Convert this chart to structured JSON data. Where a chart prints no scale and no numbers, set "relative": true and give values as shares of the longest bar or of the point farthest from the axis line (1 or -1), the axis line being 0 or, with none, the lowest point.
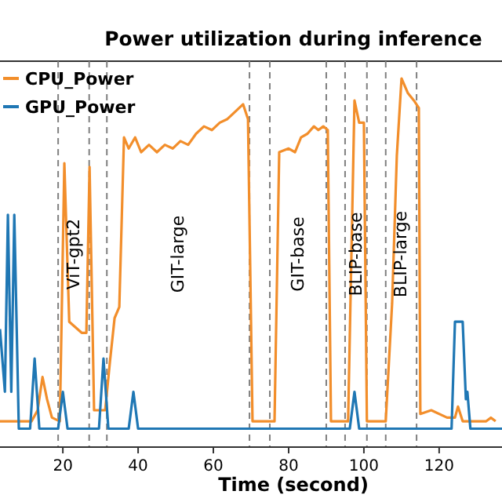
{
  "chart_data": {
    "type": "line",
    "title": "Power utilization during inference",
    "xlabel": "Time (second)",
    "relative": true,
    "xlim": [
      3.3,
      136.7
    ],
    "xticks": [
      20,
      40,
      60,
      80,
      100,
      120
    ],
    "legend": "top left",
    "grid": false,
    "series": [
      {
        "name": "CPU_Power",
        "color": "#f28e2b",
        "x": [
          3.3,
          11.7,
          13.3,
          14.6,
          15.8,
          17.1,
          19.2,
          20.4,
          21.7,
          25,
          26.25,
          27.1,
          28.3,
          31.25,
          32.5,
          33.75,
          35,
          36.25,
          37.5,
          39.2,
          40.8,
          42.9,
          45,
          47.1,
          49.2,
          51.25,
          53.3,
          55.4,
          57.5,
          59.6,
          61.7,
          63.75,
          65.8,
          67.9,
          69.2,
          70.4,
          76.25,
          77.5,
          80,
          81.7,
          83.3,
          85,
          86.7,
          87.9,
          89.2,
          90.4,
          91.25,
          95.8,
          97.5,
          98.75,
          100,
          100.8,
          105.8,
          107.5,
          108.75,
          110,
          111.7,
          113.3,
          114.6,
          115,
          117.9,
          122.1,
          124.2,
          125,
          126.25,
          132.5,
          133.75,
          135
        ],
        "values": [
          0.07,
          0.07,
          0.1,
          0.19,
          0.13,
          0.08,
          0.07,
          0.77,
          0.34,
          0.31,
          0.31,
          0.76,
          0.1,
          0.1,
          0.23,
          0.35,
          0.38,
          0.84,
          0.81,
          0.84,
          0.8,
          0.82,
          0.8,
          0.82,
          0.81,
          0.83,
          0.82,
          0.85,
          0.87,
          0.86,
          0.88,
          0.89,
          0.91,
          0.93,
          0.89,
          0.07,
          0.07,
          0.8,
          0.81,
          0.8,
          0.84,
          0.85,
          0.87,
          0.86,
          0.87,
          0.86,
          0.07,
          0.07,
          0.94,
          0.88,
          0.88,
          0.07,
          0.07,
          0.39,
          0.79,
          1,
          0.96,
          0.94,
          0.92,
          0.09,
          0.1,
          0.08,
          0.08,
          0.11,
          0.07,
          0.07,
          0.08,
          0.07
        ]
      },
      {
        "name": "GPU_Power",
        "color": "#1f77b4",
        "x": [
          3.3,
          4.6,
          5.4,
          6.3,
          7.1,
          8.3,
          11.3,
          12.5,
          13.75,
          18.75,
          20,
          21.25,
          29.6,
          30.8,
          32.1,
          37.5,
          38.75,
          40,
          96.25,
          97.5,
          98.75,
          123.3,
          124.2,
          126.25,
          127.1,
          127.5,
          128.3,
          136.7
        ],
        "values": [
          0.32,
          0.15,
          0.63,
          0.15,
          0.63,
          0.05,
          0.05,
          0.24,
          0.05,
          0.05,
          0.15,
          0.05,
          0.05,
          0.24,
          0.05,
          0.05,
          0.15,
          0.05,
          0.05,
          0.15,
          0.05,
          0.05,
          0.34,
          0.34,
          0.13,
          0.15,
          0.05,
          0.05
        ]
      }
    ],
    "ref_lines": [
      {
        "axis": "x",
        "value": 18.75,
        "color": "#808080",
        "line_style": "dashed"
      },
      {
        "axis": "x",
        "value": 27,
        "color": "#808080",
        "line_style": "dashed"
      },
      {
        "axis": "x",
        "value": 31.7,
        "color": "#808080",
        "line_style": "dashed"
      },
      {
        "axis": "x",
        "value": 69.6,
        "color": "#808080",
        "line_style": "dashed"
      },
      {
        "axis": "x",
        "value": 75,
        "color": "#808080",
        "line_style": "dashed"
      },
      {
        "axis": "x",
        "value": 90,
        "color": "#808080",
        "line_style": "dashed"
      },
      {
        "axis": "x",
        "value": 95,
        "color": "#808080",
        "line_style": "dashed"
      },
      {
        "axis": "x",
        "value": 100.8,
        "color": "#808080",
        "line_style": "dashed"
      },
      {
        "axis": "x",
        "value": 105.8,
        "color": "#808080",
        "line_style": "dashed"
      },
      {
        "axis": "x",
        "value": 114,
        "color": "#808080",
        "line_style": "dashed"
      }
    ],
    "annotations": [
      "ViT-gpt2",
      "GIT-large",
      "GIT-base",
      "BLIP-base",
      "BLIP-large"
    ]
  }
}
